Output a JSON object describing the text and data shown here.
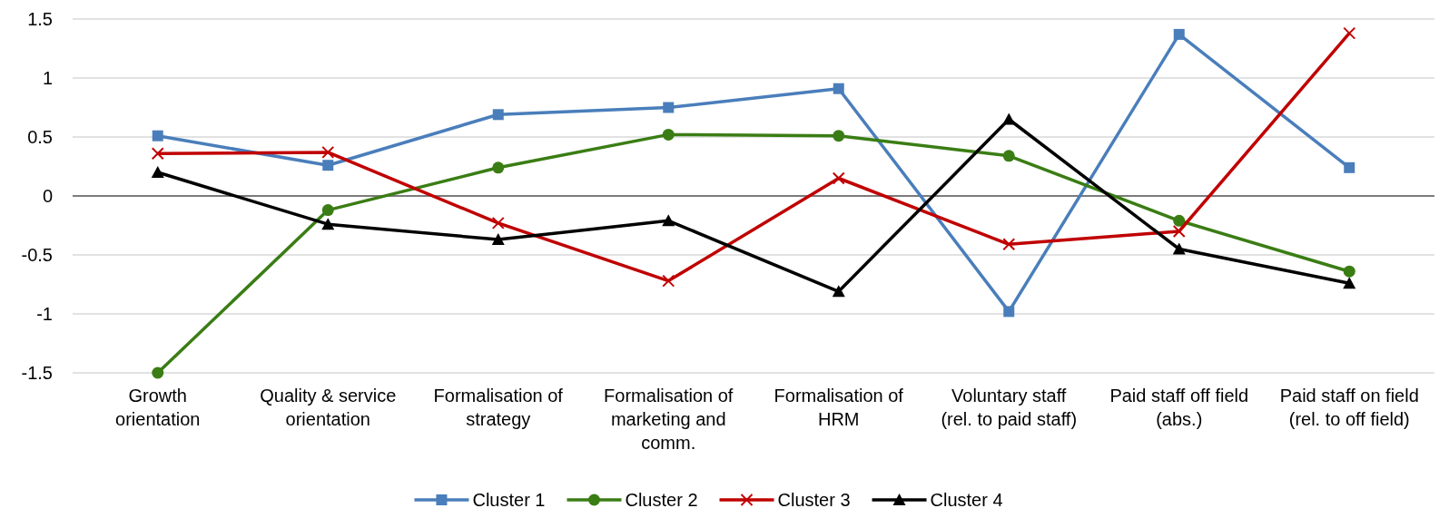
{
  "chart_data": {
    "type": "line",
    "categories": [
      "Growth orientation",
      "Quality & service orientation",
      "Formalisation of strategy",
      "Formalisation of marketing and comm.",
      "Formalisation of HRM",
      "Voluntary staff (rel. to paid staff)",
      "Paid staff off field (abs.)",
      "Paid staff on field (rel. to off field)"
    ],
    "series": [
      {
        "name": "Cluster 1",
        "color": "#4a7ebb",
        "marker": "square",
        "values": [
          0.51,
          0.26,
          0.69,
          0.75,
          0.91,
          -0.98,
          1.37,
          0.24
        ]
      },
      {
        "name": "Cluster 2",
        "color": "#3a7d14",
        "marker": "circle",
        "values": [
          -1.5,
          -0.12,
          0.24,
          0.52,
          0.51,
          0.34,
          -0.21,
          -0.64
        ]
      },
      {
        "name": "Cluster 3",
        "color": "#c00000",
        "marker": "cross",
        "values": [
          0.36,
          0.37,
          -0.23,
          -0.72,
          0.15,
          -0.41,
          -0.3,
          1.38
        ]
      },
      {
        "name": "Cluster 4",
        "color": "#000000",
        "marker": "triangle",
        "values": [
          0.2,
          -0.24,
          -0.37,
          -0.21,
          -0.81,
          0.65,
          -0.45,
          -0.74
        ]
      }
    ],
    "ylim": [
      -1.5,
      1.5
    ],
    "yticks": [
      -1.5,
      -1,
      -0.5,
      0,
      0.5,
      1,
      1.5
    ],
    "grid": "y",
    "legend": "bottom",
    "line_style": "solid"
  }
}
